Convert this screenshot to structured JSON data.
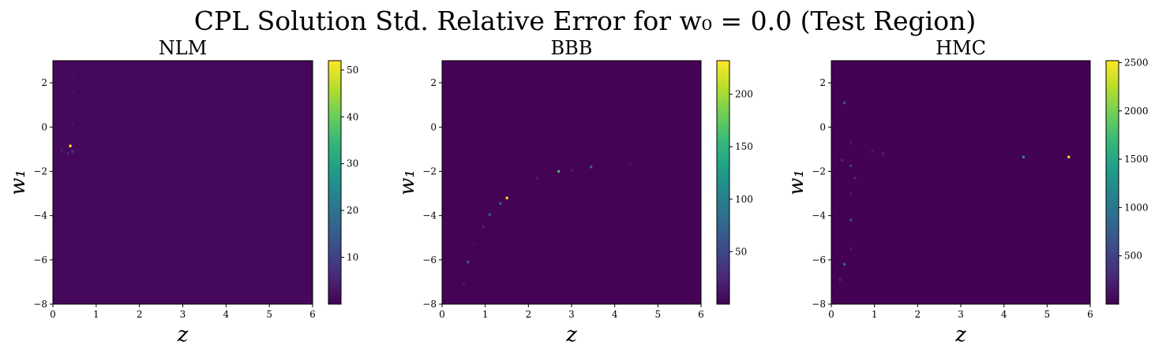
{
  "figure": {
    "title": "CPL Solution Std. Relative Error for w₀ = 0.0 (Test Region)"
  },
  "colors": {
    "viridis": [
      "#440154",
      "#482878",
      "#3e4989",
      "#31688e",
      "#26828e",
      "#1f9e89",
      "#35b779",
      "#6ece58",
      "#b5de2b",
      "#fde725"
    ],
    "background": "#ffffff",
    "axis": "#000000"
  },
  "chart_data": [
    {
      "type": "heatmap",
      "title": "NLM",
      "xlabel": "z",
      "ylabel": "w₁",
      "xlim": [
        0,
        6
      ],
      "ylim": [
        -8,
        3
      ],
      "xticks": [
        "0",
        "1",
        "2",
        "3",
        "4",
        "5",
        "6"
      ],
      "yticks": [
        "−8",
        "−6",
        "−4",
        "−2",
        "0",
        "2"
      ],
      "grid": false,
      "colorbar": {
        "vmin": 0,
        "vmax": 52,
        "ticks": [
          "10",
          "20",
          "30",
          "40",
          "50"
        ],
        "tick_values": [
          10,
          20,
          30,
          40,
          50
        ]
      },
      "background_value": 1,
      "hotspots": [
        {
          "z": 0.4,
          "w1": -0.85,
          "value": 52
        },
        {
          "z": 0.45,
          "w1": -1.1,
          "value": 10
        },
        {
          "z": 0.35,
          "w1": -1.2,
          "value": 6
        },
        {
          "z": 0.2,
          "w1": -1.05,
          "value": 5
        },
        {
          "z": 0.45,
          "w1": 0.1,
          "value": 4
        },
        {
          "z": 0.45,
          "w1": 2.4,
          "value": 3
        },
        {
          "z": 0.45,
          "w1": 1.6,
          "value": 3
        }
      ]
    },
    {
      "type": "heatmap",
      "title": "BBB",
      "xlabel": "z",
      "ylabel": "w₁",
      "xlim": [
        0,
        6
      ],
      "ylim": [
        -8,
        3
      ],
      "xticks": [
        "0",
        "1",
        "2",
        "3",
        "4",
        "5",
        "6"
      ],
      "yticks": [
        "−8",
        "−6",
        "−4",
        "−2",
        "0",
        "2"
      ],
      "grid": false,
      "colorbar": {
        "vmin": 0,
        "vmax": 232,
        "ticks": [
          "50",
          "100",
          "150",
          "200"
        ],
        "tick_values": [
          50,
          100,
          150,
          200
        ]
      },
      "background_value": 1,
      "hotspots": [
        {
          "z": 1.5,
          "w1": -3.2,
          "value": 232
        },
        {
          "z": 2.7,
          "w1": -2.0,
          "value": 160
        },
        {
          "z": 3.45,
          "w1": -1.8,
          "value": 85
        },
        {
          "z": 1.35,
          "w1": -3.45,
          "value": 75
        },
        {
          "z": 1.1,
          "w1": -3.95,
          "value": 70
        },
        {
          "z": 0.6,
          "w1": -6.1,
          "value": 70
        },
        {
          "z": 0.95,
          "w1": -4.5,
          "value": 30
        },
        {
          "z": 2.2,
          "w1": -2.3,
          "value": 20
        },
        {
          "z": 3.0,
          "w1": -1.95,
          "value": 20
        },
        {
          "z": 4.35,
          "w1": -1.65,
          "value": 15
        },
        {
          "z": 0.5,
          "w1": -7.1,
          "value": 15
        },
        {
          "z": 0.75,
          "w1": -5.3,
          "value": 12
        }
      ]
    },
    {
      "type": "heatmap",
      "title": "HMC",
      "xlabel": "z",
      "ylabel": "w₁",
      "xlim": [
        0,
        6
      ],
      "ylim": [
        -8,
        3
      ],
      "xticks": [
        "0",
        "1",
        "2",
        "3",
        "4",
        "5",
        "6"
      ],
      "yticks": [
        "−8",
        "−6",
        "−4",
        "−2",
        "0",
        "2"
      ],
      "grid": false,
      "colorbar": {
        "vmin": 0,
        "vmax": 2520,
        "ticks": [
          "500",
          "1000",
          "1500",
          "2000",
          "2500"
        ],
        "tick_values": [
          500,
          1000,
          1500,
          2000,
          2500
        ]
      },
      "background_value": 10,
      "hotspots": [
        {
          "z": 5.5,
          "w1": -1.35,
          "value": 2500
        },
        {
          "z": 4.45,
          "w1": -1.35,
          "value": 1250
        },
        {
          "z": 0.3,
          "w1": -6.2,
          "value": 900
        },
        {
          "z": 0.45,
          "w1": -4.2,
          "value": 700
        },
        {
          "z": 0.3,
          "w1": 1.1,
          "value": 650
        },
        {
          "z": 0.45,
          "w1": -1.75,
          "value": 500
        },
        {
          "z": 0.25,
          "w1": -1.5,
          "value": 300
        },
        {
          "z": 0.55,
          "w1": -2.3,
          "value": 300
        },
        {
          "z": 1.2,
          "w1": -1.2,
          "value": 250
        },
        {
          "z": 0.95,
          "w1": -1.1,
          "value": 200
        },
        {
          "z": 0.45,
          "w1": -0.7,
          "value": 180
        },
        {
          "z": 0.2,
          "w1": -6.9,
          "value": 250
        },
        {
          "z": 0.45,
          "w1": -3.0,
          "value": 150
        },
        {
          "z": 0.45,
          "w1": -5.5,
          "value": 150
        }
      ]
    }
  ]
}
